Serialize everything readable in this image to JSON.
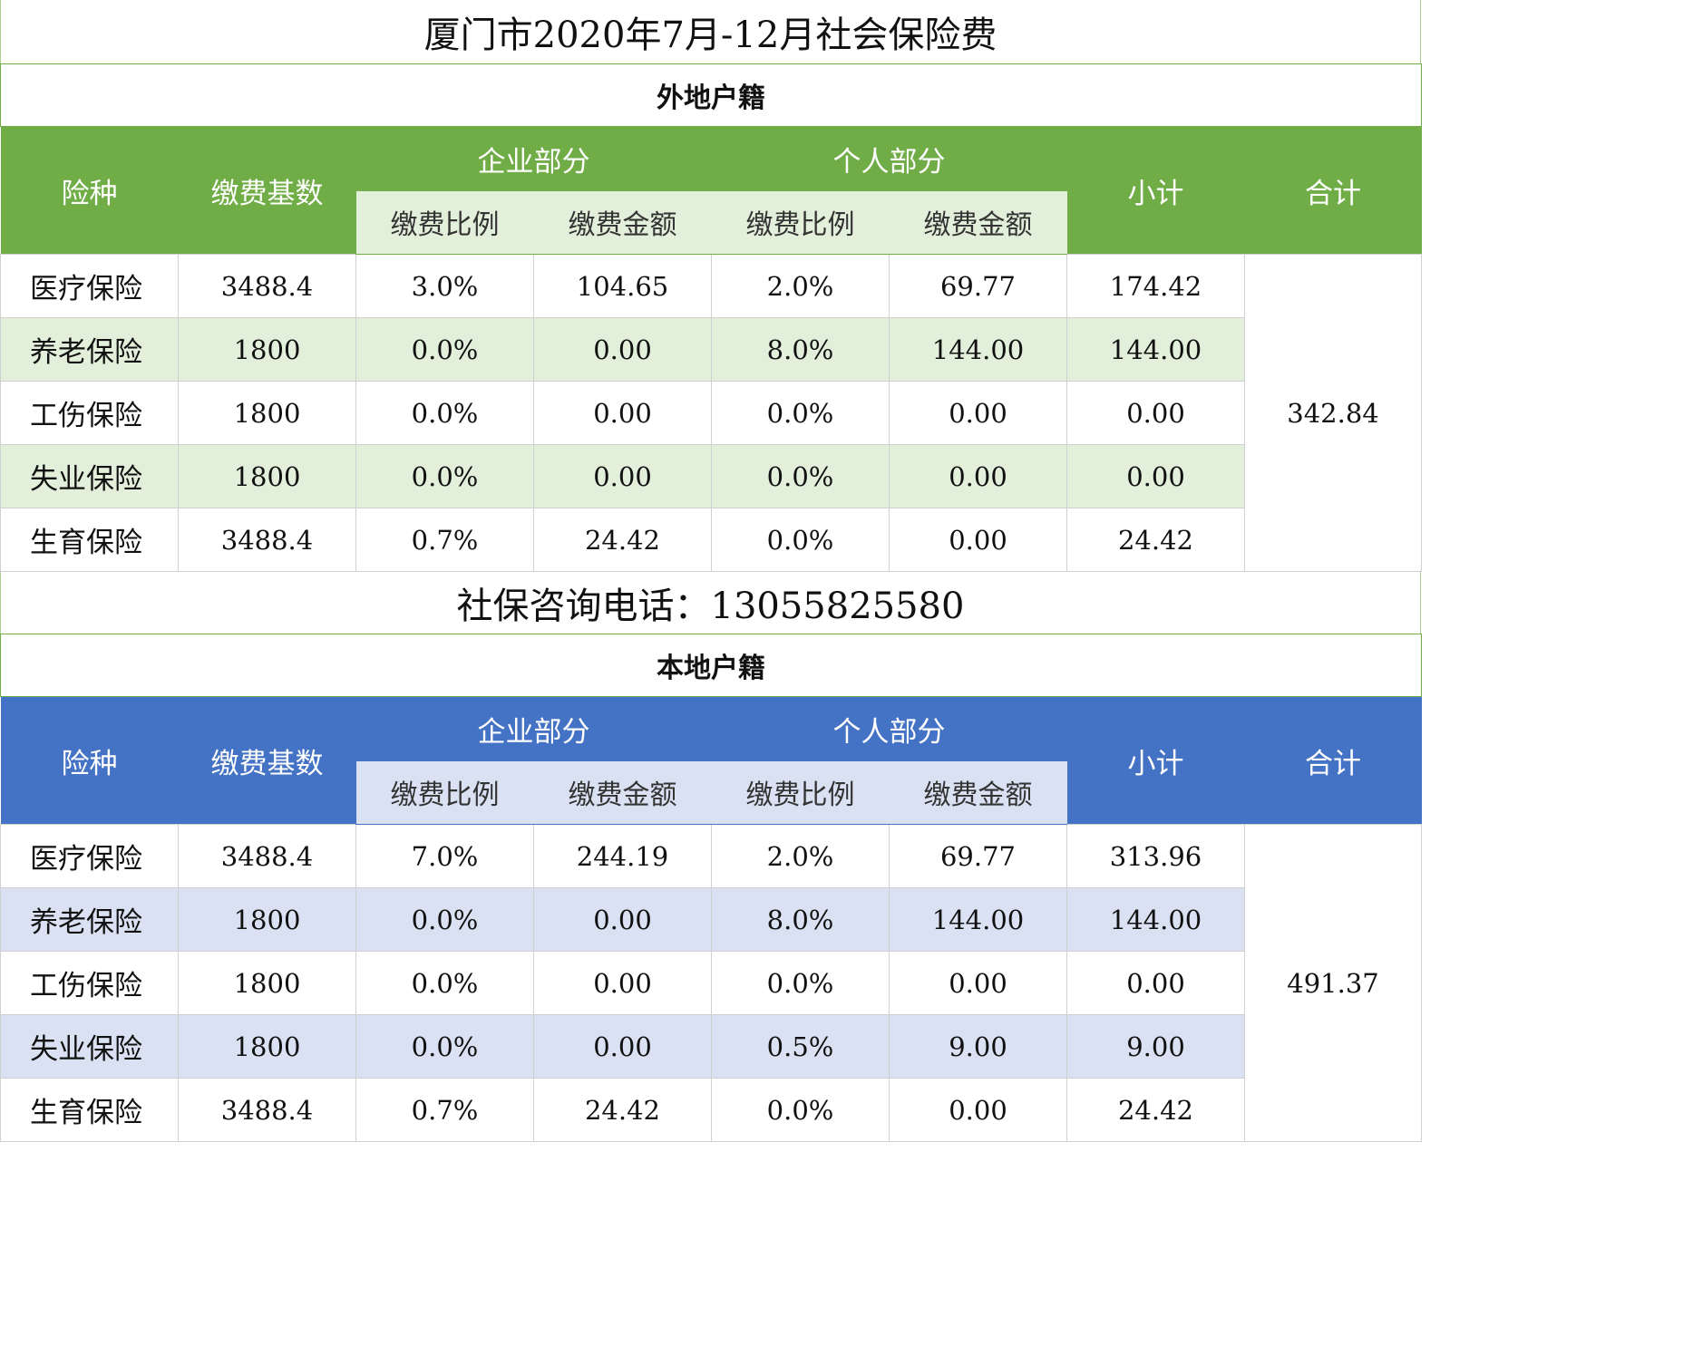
{
  "title": "厦门市2020年7月-12月社会保险费",
  "phone_line": "社保咨询电话：13055825580",
  "header": {
    "insurance_type": "险种",
    "base": "缴费基数",
    "company_part": "企业部分",
    "personal_part": "个人部分",
    "rate": "缴费比例",
    "amount": "缴费金额",
    "subtotal": "小计",
    "total": "合计"
  },
  "colors": {
    "nonlocal_header": "#70ad47",
    "nonlocal_band": "#e2efda",
    "local_header": "#4472c4",
    "local_band": "#d9e1f2"
  },
  "nonlocal": {
    "label": "外地户籍",
    "total": "342.84",
    "rows": [
      {
        "name": "医疗保险",
        "base": "3488.4",
        "c_rate": "3.0%",
        "c_amt": "104.65",
        "p_rate": "2.0%",
        "p_amt": "69.77",
        "subtotal": "174.42"
      },
      {
        "name": "养老保险",
        "base": "1800",
        "c_rate": "0.0%",
        "c_amt": "0.00",
        "p_rate": "8.0%",
        "p_amt": "144.00",
        "subtotal": "144.00"
      },
      {
        "name": "工伤保险",
        "base": "1800",
        "c_rate": "0.0%",
        "c_amt": "0.00",
        "p_rate": "0.0%",
        "p_amt": "0.00",
        "subtotal": "0.00"
      },
      {
        "name": "失业保险",
        "base": "1800",
        "c_rate": "0.0%",
        "c_amt": "0.00",
        "p_rate": "0.0%",
        "p_amt": "0.00",
        "subtotal": "0.00"
      },
      {
        "name": "生育保险",
        "base": "3488.4",
        "c_rate": "0.7%",
        "c_amt": "24.42",
        "p_rate": "0.0%",
        "p_amt": "0.00",
        "subtotal": "24.42"
      }
    ]
  },
  "local": {
    "label": "本地户籍",
    "total": "491.37",
    "rows": [
      {
        "name": "医疗保险",
        "base": "3488.4",
        "c_rate": "7.0%",
        "c_amt": "244.19",
        "p_rate": "2.0%",
        "p_amt": "69.77",
        "subtotal": "313.96"
      },
      {
        "name": "养老保险",
        "base": "1800",
        "c_rate": "0.0%",
        "c_amt": "0.00",
        "p_rate": "8.0%",
        "p_amt": "144.00",
        "subtotal": "144.00"
      },
      {
        "name": "工伤保险",
        "base": "1800",
        "c_rate": "0.0%",
        "c_amt": "0.00",
        "p_rate": "0.0%",
        "p_amt": "0.00",
        "subtotal": "0.00"
      },
      {
        "name": "失业保险",
        "base": "1800",
        "c_rate": "0.0%",
        "c_amt": "0.00",
        "p_rate": "0.5%",
        "p_amt": "9.00",
        "subtotal": "9.00"
      },
      {
        "name": "生育保险",
        "base": "3488.4",
        "c_rate": "0.7%",
        "c_amt": "24.42",
        "p_rate": "0.0%",
        "p_amt": "0.00",
        "subtotal": "24.42"
      }
    ]
  }
}
